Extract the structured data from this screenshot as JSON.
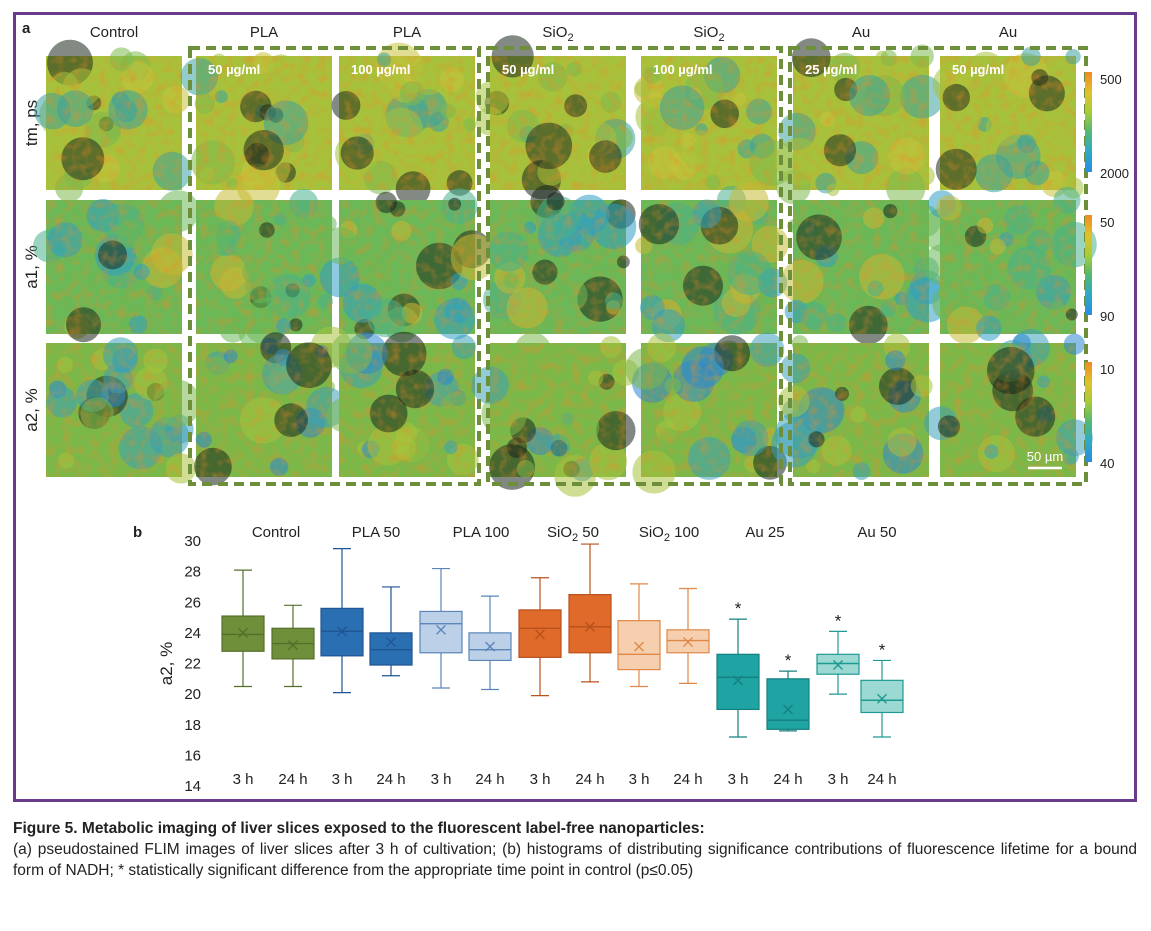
{
  "panel_a": {
    "letter": "a",
    "columns": [
      {
        "label": "Control",
        "sub": "",
        "conc": ""
      },
      {
        "label": "PLA",
        "sub": "",
        "conc": "50 µg/ml"
      },
      {
        "label": "PLA",
        "sub": "",
        "conc": "100 µg/ml"
      },
      {
        "label": "SiO",
        "sub": "2",
        "conc": "50 µg/ml"
      },
      {
        "label": "SiO",
        "sub": "2",
        "conc": "100 µg/ml"
      },
      {
        "label": "Au",
        "sub": "",
        "conc": "25 µg/ml"
      },
      {
        "label": "Au",
        "sub": "",
        "conc": "50 µg/ml"
      }
    ],
    "rows": [
      "tm, ps",
      "a1, %",
      "a2, %"
    ],
    "colorbars": [
      {
        "top": "500",
        "bottom": "2000"
      },
      {
        "top": "50",
        "bottom": "90"
      },
      {
        "top": "10",
        "bottom": "40"
      }
    ],
    "scale_bar": "50 µm",
    "group_box_color": "#6e8f3a",
    "colormap": [
      "#f08a24",
      "#e2c02a",
      "#a8cc3a",
      "#52b874",
      "#30a8c8",
      "#2a8ce0"
    ]
  },
  "panel_b": {
    "letter": "b",
    "group_labels": [
      {
        "text": "Control",
        "sub": "",
        "after": ""
      },
      {
        "text": "PLA 50",
        "sub": "",
        "after": ""
      },
      {
        "text": "PLA 100",
        "sub": "",
        "after": ""
      },
      {
        "text": "SiO",
        "sub": "2",
        "after": " 50"
      },
      {
        "text": "SiO",
        "sub": "2",
        "after": " 100"
      },
      {
        "text": "Au 25",
        "sub": "",
        "after": ""
      },
      {
        "text": "Au 50",
        "sub": "",
        "after": ""
      }
    ],
    "significance_mark": "*"
  },
  "chart_data": {
    "type": "box",
    "ylabel": "a2, %",
    "ylim": [
      14,
      30
    ],
    "yticks": [
      14,
      16,
      18,
      20,
      22,
      24,
      26,
      28,
      30
    ],
    "categories": [
      "3 h",
      "24 h",
      "3 h",
      "24 h",
      "3 h",
      "24 h",
      "3 h",
      "24 h",
      "3 h",
      "24 h",
      "3 h",
      "24 h",
      "3 h",
      "24 h"
    ],
    "boxes": [
      {
        "group": "Control",
        "time": "3 h",
        "min": 20.5,
        "q1": 22.8,
        "median": 23.9,
        "q3": 25.1,
        "max": 28.1,
        "mean": 24.0,
        "sig": false,
        "fill": "#6f8f3a",
        "stroke": "#54702a"
      },
      {
        "group": "Control",
        "time": "24 h",
        "min": 20.5,
        "q1": 22.3,
        "median": 23.3,
        "q3": 24.3,
        "max": 25.8,
        "mean": 23.2,
        "sig": false,
        "fill": "#6f8f3a",
        "stroke": "#54702a"
      },
      {
        "group": "PLA 50",
        "time": "3 h",
        "min": 20.1,
        "q1": 22.5,
        "median": 24.1,
        "q3": 25.6,
        "max": 29.5,
        "mean": 24.1,
        "sig": false,
        "fill": "#2b6fb3",
        "stroke": "#1f5592"
      },
      {
        "group": "PLA 50",
        "time": "24 h",
        "min": 21.2,
        "q1": 21.9,
        "median": 22.9,
        "q3": 24.0,
        "max": 27.0,
        "mean": 23.4,
        "sig": false,
        "fill": "#2b6fb3",
        "stroke": "#1f5592"
      },
      {
        "group": "PLA 100",
        "time": "3 h",
        "min": 20.4,
        "q1": 22.7,
        "median": 24.6,
        "q3": 25.4,
        "max": 28.2,
        "mean": 24.2,
        "sig": false,
        "fill": "#bcd0e8",
        "stroke": "#5a86ba"
      },
      {
        "group": "PLA 100",
        "time": "24 h",
        "min": 20.3,
        "q1": 22.2,
        "median": 22.9,
        "q3": 24.0,
        "max": 26.4,
        "mean": 23.1,
        "sig": false,
        "fill": "#bcd0e8",
        "stroke": "#5a86ba"
      },
      {
        "group": "SiO2 50",
        "time": "3 h",
        "min": 19.9,
        "q1": 22.4,
        "median": 24.3,
        "q3": 25.5,
        "max": 27.6,
        "mean": 23.9,
        "sig": false,
        "fill": "#e06a2a",
        "stroke": "#b8521c"
      },
      {
        "group": "SiO2 50",
        "time": "24 h",
        "min": 20.8,
        "q1": 22.7,
        "median": 24.4,
        "q3": 26.5,
        "max": 29.8,
        "mean": 24.4,
        "sig": false,
        "fill": "#e06a2a",
        "stroke": "#b8521c"
      },
      {
        "group": "SiO2 100",
        "time": "3 h",
        "min": 20.5,
        "q1": 21.6,
        "median": 22.6,
        "q3": 24.8,
        "max": 27.2,
        "mean": 23.1,
        "sig": false,
        "fill": "#f6cfae",
        "stroke": "#e0884a"
      },
      {
        "group": "SiO2 100",
        "time": "24 h",
        "min": 20.7,
        "q1": 22.7,
        "median": 23.5,
        "q3": 24.2,
        "max": 26.9,
        "mean": 23.4,
        "sig": false,
        "fill": "#f6cfae",
        "stroke": "#e0884a"
      },
      {
        "group": "Au 25",
        "time": "3 h",
        "min": 17.2,
        "q1": 19.0,
        "median": 21.1,
        "q3": 22.6,
        "max": 24.9,
        "mean": 20.9,
        "sig": true,
        "fill": "#1fa3a3",
        "stroke": "#158080"
      },
      {
        "group": "Au 25",
        "time": "24 h",
        "min": 17.6,
        "q1": 17.7,
        "median": 18.3,
        "q3": 21.0,
        "max": 21.5,
        "mean": 19.0,
        "sig": true,
        "fill": "#1fa3a3",
        "stroke": "#158080"
      },
      {
        "group": "Au 50",
        "time": "3 h",
        "min": 20.0,
        "q1": 21.3,
        "median": 22.0,
        "q3": 22.6,
        "max": 24.1,
        "mean": 21.9,
        "sig": true,
        "fill": "#9cd9d3",
        "stroke": "#1f9a92"
      },
      {
        "group": "Au 50",
        "time": "24 h",
        "min": 17.2,
        "q1": 18.8,
        "median": 19.6,
        "q3": 20.9,
        "max": 22.2,
        "mean": 19.7,
        "sig": true,
        "fill": "#9cd9d3",
        "stroke": "#1f9a92"
      }
    ]
  },
  "caption": {
    "title": "Figure 5. Metabolic imaging of liver slices exposed to the fluorescent label-free nanoparticles:",
    "body": "(a) pseudostained FLIM images of liver slices after 3 h of cultivation; (b) histograms of distributing significance contributions of fluorescence lifetime for a bound form of NADH; * statistically significant difference from the appropriate time point in control (p≤0.05)"
  }
}
